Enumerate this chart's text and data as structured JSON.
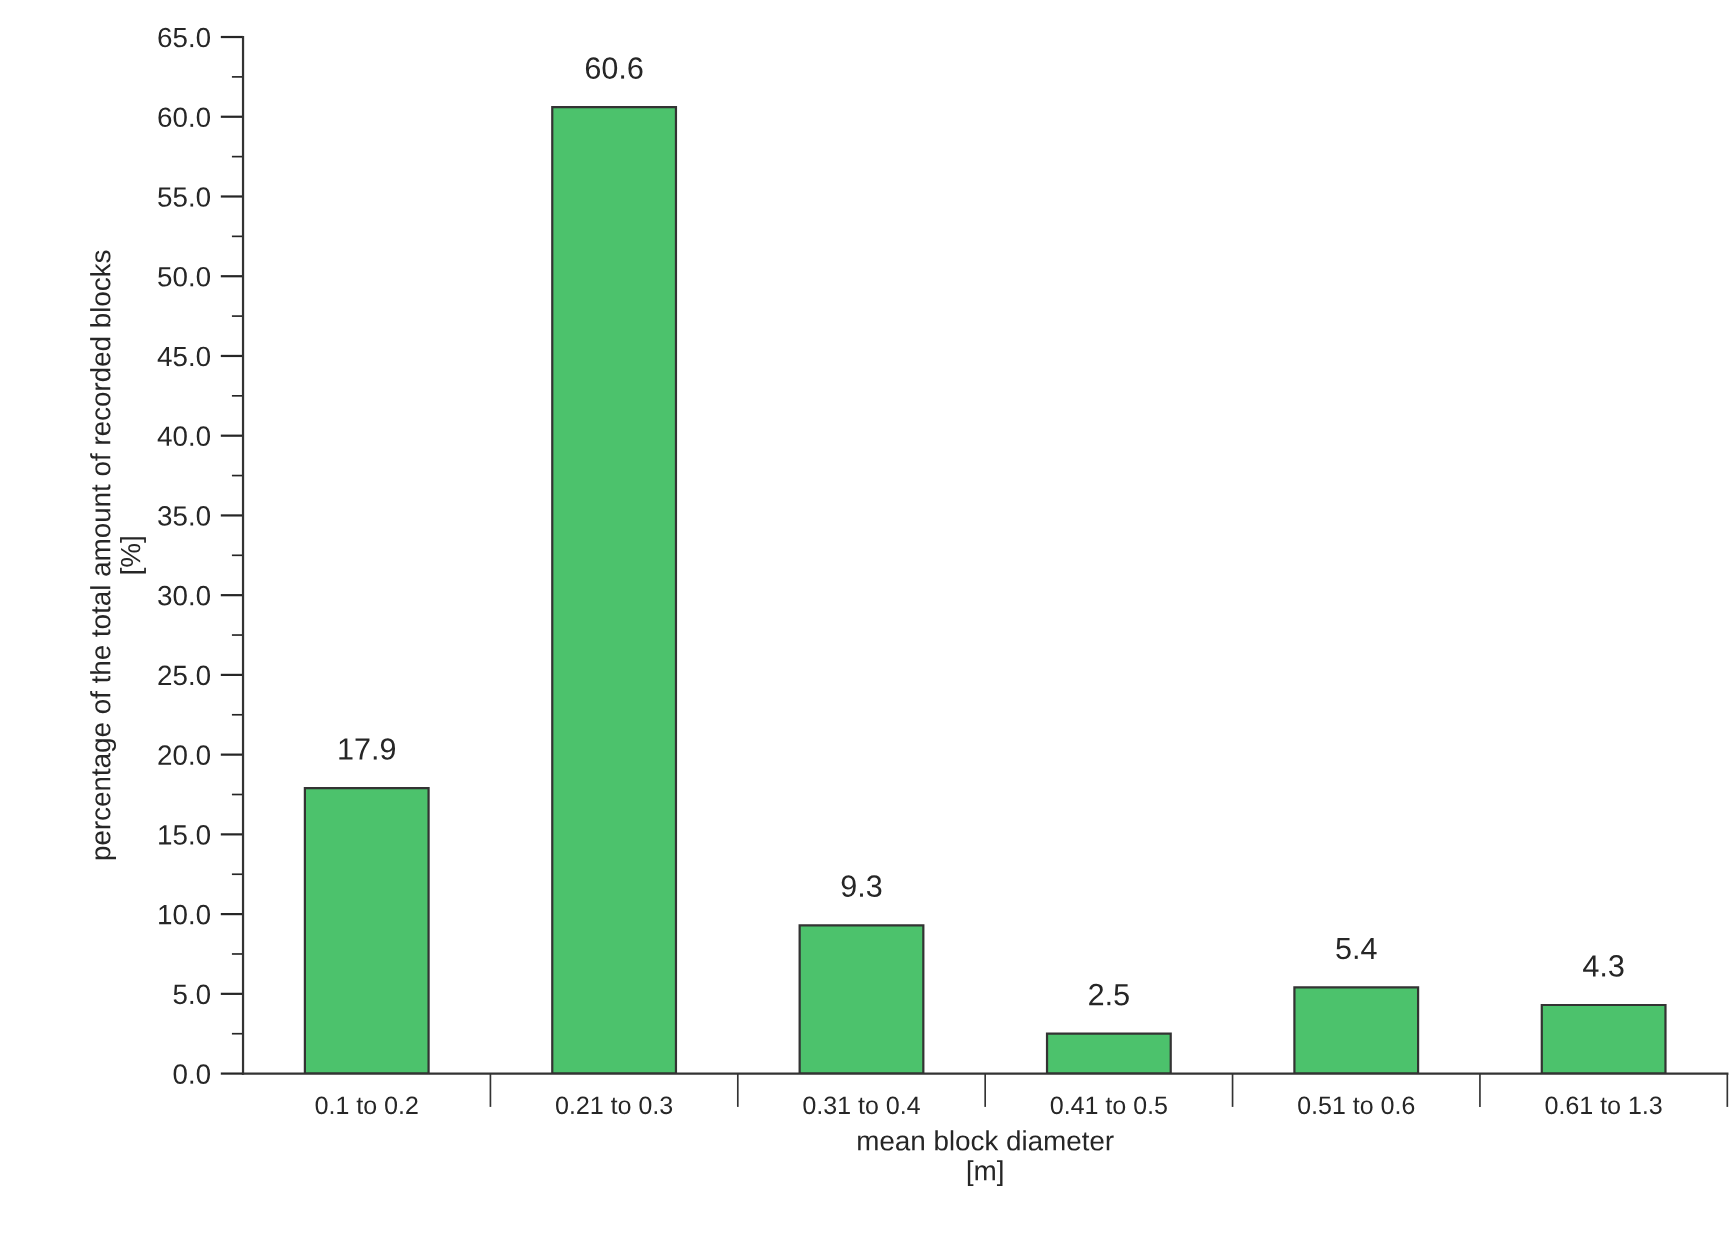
{
  "chart_data": {
    "type": "bar",
    "categories": [
      "0.1 to 0.2",
      "0.21 to 0.3",
      "0.31 to 0.4",
      "0.41 to 0.5",
      "0.51 to 0.6",
      "0.61 to 1.3"
    ],
    "values": [
      17.9,
      60.6,
      9.3,
      2.5,
      5.4,
      4.3
    ],
    "color": "#4cc26c",
    "data_labels": true,
    "xlabel": "mean block diameter\n[m]",
    "ylabel": "percentage of the total amount of recorded blocks\n[%]",
    "ylim": [
      0,
      65
    ],
    "yticks": [
      {
        "value": 0,
        "label": "0.0"
      },
      {
        "value": 5,
        "label": "5.0"
      },
      {
        "value": 10,
        "label": "10.0"
      },
      {
        "value": 15,
        "label": "15.0"
      },
      {
        "value": 20,
        "label": "20.0"
      },
      {
        "value": 25,
        "label": "25.0"
      },
      {
        "value": 30,
        "label": "30.0"
      },
      {
        "value": 35,
        "label": "35.0"
      },
      {
        "value": 40,
        "label": "40.0"
      },
      {
        "value": 45,
        "label": "45.0"
      },
      {
        "value": 50,
        "label": "50.0"
      },
      {
        "value": 55,
        "label": "55.0"
      },
      {
        "value": 60,
        "label": "60.0"
      },
      {
        "value": 65,
        "label": "65.0"
      }
    ],
    "grid": false,
    "legend": false
  }
}
